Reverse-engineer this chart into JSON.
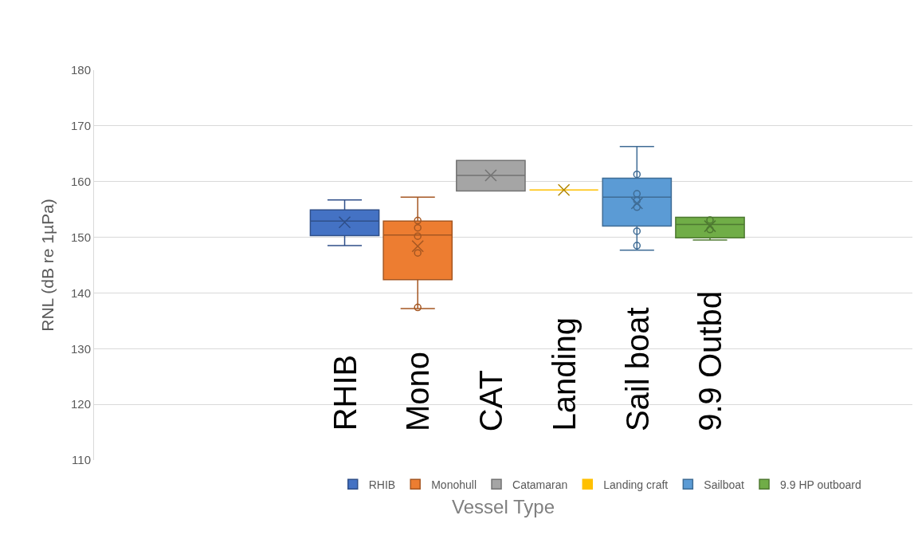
{
  "chart_data": {
    "type": "box",
    "xlabel": "Vessel Type",
    "ylabel": "RNL (dB re 1µPa)",
    "categories": [
      null
    ],
    "ylim": [
      110,
      180
    ],
    "yticks": [
      110,
      120,
      130,
      140,
      150,
      160,
      170,
      180
    ],
    "grid": "y",
    "legend": "bottom",
    "marker": "circle",
    "tick_labels": "y",
    "series": [
      {
        "name": "RHIB",
        "color": "#4472c4",
        "boxes": [
          {
            "low": 148.5,
            "q1": 150.3,
            "median": 152.9,
            "q3": 154.9,
            "high": 156.7,
            "mean": 152.7
          }
        ]
      },
      {
        "name": "Monohull",
        "color": "#ed7d31",
        "boxes": [
          {
            "low": 137.2,
            "q1": 142.4,
            "median": 150.4,
            "q3": 152.9,
            "high": 157.2,
            "mean": 148.4,
            "outliers": [
              153.0,
              151.7,
              150.2,
              147.2,
              137.4
            ]
          }
        ]
      },
      {
        "name": "Catamaran",
        "color": "#a5a5a5",
        "boxes": [
          {
            "low": 158.3,
            "q1": 158.3,
            "median": 161.1,
            "q3": 163.8,
            "high": 163.8,
            "mean": 161.1
          }
        ]
      },
      {
        "name": "Landing craft",
        "color": "#ffc000",
        "boxes": [
          {
            "low": 158.5,
            "q1": 158.5,
            "median": 158.5,
            "q3": 158.5,
            "high": 158.5,
            "mean": 158.5
          }
        ]
      },
      {
        "name": "Sailboat",
        "color": "#5b9bd5",
        "boxes": [
          {
            "low": 147.7,
            "q1": 152.0,
            "median": 157.2,
            "q3": 160.6,
            "high": 166.3,
            "mean": 156.1,
            "outliers": [
              161.3,
              157.8,
              156.6,
              155.4,
              151.1,
              148.5
            ]
          }
        ]
      },
      {
        "name": "9.9 HP outboard",
        "color": "#70ad47",
        "boxes": [
          {
            "low": 149.5,
            "q1": 149.9,
            "median": 152.3,
            "q3": 153.6,
            "high": 153.6,
            "mean": 152.0,
            "outliers": [
              153.1,
              151.4
            ]
          }
        ]
      }
    ],
    "annotations": [
      "RHIB",
      "Mono",
      "CAT",
      "Landing",
      "Sail boat",
      "9.9 Outbd"
    ]
  }
}
